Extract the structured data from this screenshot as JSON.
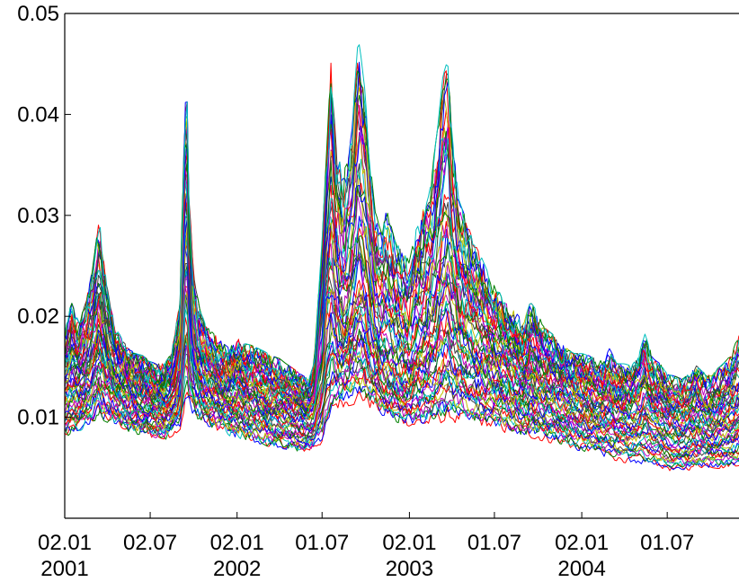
{
  "chart_data": {
    "type": "line",
    "title": "",
    "xlabel": "",
    "ylabel": "",
    "x_start": "2001-01-02",
    "x_end": "2004-11-30",
    "ylim": [
      0,
      0.05
    ],
    "yticks": [
      {
        "value": 0.01,
        "label": "0.01"
      },
      {
        "value": 0.02,
        "label": "0.02"
      },
      {
        "value": 0.03,
        "label": "0.03"
      },
      {
        "value": 0.04,
        "label": "0.04"
      },
      {
        "value": 0.05,
        "label": "0.05"
      }
    ],
    "xticks": [
      {
        "date": "2001-01-02",
        "label": "02.01",
        "year": "2001"
      },
      {
        "date": "2001-07-02",
        "label": "02.07",
        "year": ""
      },
      {
        "date": "2002-01-02",
        "label": "02.01",
        "year": "2002"
      },
      {
        "date": "2002-07-01",
        "label": "01.07",
        "year": ""
      },
      {
        "date": "2003-01-02",
        "label": "02.01",
        "year": "2003"
      },
      {
        "date": "2003-07-01",
        "label": "01.07",
        "year": ""
      },
      {
        "date": "2004-01-02",
        "label": "02.01",
        "year": "2004"
      },
      {
        "date": "2004-07-01",
        "label": "01.07",
        "year": ""
      }
    ],
    "grid": false,
    "legend": "none",
    "series_colors": [
      "#ff0000",
      "#0000ff",
      "#008000",
      "#00bfbf",
      "#bf00bf",
      "#bfbf00",
      "#404040"
    ],
    "envelope": {
      "dates": [
        "2001-01-02",
        "2001-01-16",
        "2001-02-01",
        "2001-02-16",
        "2001-03-01",
        "2001-03-16",
        "2001-04-02",
        "2001-04-16",
        "2001-05-02",
        "2001-05-16",
        "2001-06-01",
        "2001-06-16",
        "2001-07-02",
        "2001-07-16",
        "2001-08-01",
        "2001-08-16",
        "2001-09-03",
        "2001-09-11",
        "2001-09-17",
        "2001-09-21",
        "2001-10-01",
        "2001-10-16",
        "2001-11-01",
        "2001-11-16",
        "2001-12-03",
        "2001-12-17",
        "2002-01-02",
        "2002-01-16",
        "2002-02-01",
        "2002-02-15",
        "2002-03-01",
        "2002-03-15",
        "2002-04-02",
        "2002-04-16",
        "2002-05-02",
        "2002-05-16",
        "2002-06-03",
        "2002-06-14",
        "2002-07-01",
        "2002-07-10",
        "2002-07-20",
        "2002-08-01",
        "2002-08-15",
        "2002-09-02",
        "2002-09-16",
        "2002-10-01",
        "2002-10-10",
        "2002-10-21",
        "2002-11-01",
        "2002-11-15",
        "2002-12-02",
        "2002-12-16",
        "2003-01-02",
        "2003-01-16",
        "2003-02-03",
        "2003-02-17",
        "2003-03-03",
        "2003-03-14",
        "2003-03-24",
        "2003-04-01",
        "2003-04-16",
        "2003-05-02",
        "2003-05-16",
        "2003-06-02",
        "2003-06-16",
        "2003-07-01",
        "2003-07-16",
        "2003-08-01",
        "2003-08-15",
        "2003-09-01",
        "2003-09-15",
        "2003-10-01",
        "2003-10-15",
        "2003-11-03",
        "2003-11-17",
        "2003-12-01",
        "2003-12-15",
        "2004-01-02",
        "2004-01-16",
        "2004-02-02",
        "2004-02-16",
        "2004-03-01",
        "2004-03-16",
        "2004-04-01",
        "2004-04-16",
        "2004-05-03",
        "2004-05-14",
        "2004-06-01",
        "2004-06-16",
        "2004-07-01",
        "2004-07-16",
        "2004-08-02",
        "2004-08-16",
        "2004-09-01",
        "2004-09-15",
        "2004-10-01",
        "2004-10-15",
        "2004-11-01",
        "2004-11-15",
        "2004-11-30"
      ],
      "low": [
        0.0082,
        0.0085,
        0.009,
        0.0096,
        0.01,
        0.0104,
        0.01,
        0.0096,
        0.0094,
        0.009,
        0.0088,
        0.0086,
        0.0084,
        0.0082,
        0.008,
        0.0085,
        0.0092,
        0.011,
        0.0125,
        0.0118,
        0.0108,
        0.01,
        0.0094,
        0.009,
        0.0088,
        0.0086,
        0.0084,
        0.0082,
        0.008,
        0.0078,
        0.0076,
        0.0074,
        0.0073,
        0.0072,
        0.007,
        0.0068,
        0.0068,
        0.0072,
        0.0078,
        0.009,
        0.0105,
        0.0112,
        0.0116,
        0.0118,
        0.012,
        0.0118,
        0.0114,
        0.0112,
        0.0108,
        0.0104,
        0.01,
        0.0098,
        0.0096,
        0.0095,
        0.0094,
        0.0095,
        0.0097,
        0.0098,
        0.01,
        0.0099,
        0.0098,
        0.0096,
        0.0095,
        0.0094,
        0.0093,
        0.0092,
        0.009,
        0.0088,
        0.0086,
        0.0085,
        0.0084,
        0.0082,
        0.008,
        0.0078,
        0.0076,
        0.0074,
        0.0072,
        0.007,
        0.0068,
        0.0066,
        0.0064,
        0.0062,
        0.006,
        0.0058,
        0.0057,
        0.0056,
        0.0055,
        0.0054,
        0.0053,
        0.005,
        0.0048,
        0.0048,
        0.005,
        0.0052,
        0.0053,
        0.0053,
        0.0052,
        0.0052,
        0.0053,
        0.0055
      ],
      "median": [
        0.0135,
        0.0145,
        0.014,
        0.015,
        0.0165,
        0.019,
        0.016,
        0.0145,
        0.0138,
        0.013,
        0.0128,
        0.0125,
        0.0122,
        0.012,
        0.0118,
        0.0125,
        0.015,
        0.024,
        0.03,
        0.023,
        0.017,
        0.015,
        0.014,
        0.0135,
        0.013,
        0.0128,
        0.0132,
        0.013,
        0.0126,
        0.0125,
        0.0122,
        0.012,
        0.0118,
        0.0116,
        0.0115,
        0.0112,
        0.011,
        0.0115,
        0.017,
        0.023,
        0.025,
        0.021,
        0.019,
        0.0215,
        0.024,
        0.023,
        0.0205,
        0.018,
        0.017,
        0.0165,
        0.016,
        0.0155,
        0.015,
        0.0165,
        0.018,
        0.019,
        0.021,
        0.0225,
        0.0235,
        0.022,
        0.02,
        0.0185,
        0.0175,
        0.017,
        0.0165,
        0.016,
        0.0155,
        0.015,
        0.0145,
        0.014,
        0.0145,
        0.014,
        0.0135,
        0.0132,
        0.013,
        0.0128,
        0.0125,
        0.012,
        0.0118,
        0.0116,
        0.0114,
        0.0115,
        0.0112,
        0.011,
        0.0108,
        0.0112,
        0.0125,
        0.011,
        0.0108,
        0.01,
        0.0098,
        0.0096,
        0.0098,
        0.01,
        0.0098,
        0.0095,
        0.0096,
        0.01,
        0.0102,
        0.011
      ],
      "high": [
        0.018,
        0.021,
        0.019,
        0.021,
        0.024,
        0.029,
        0.023,
        0.019,
        0.0175,
        0.0165,
        0.016,
        0.0158,
        0.0152,
        0.015,
        0.015,
        0.016,
        0.021,
        0.037,
        0.044,
        0.033,
        0.024,
        0.02,
        0.0185,
        0.0178,
        0.017,
        0.0165,
        0.0175,
        0.017,
        0.0168,
        0.0165,
        0.0162,
        0.0158,
        0.0155,
        0.015,
        0.0145,
        0.014,
        0.0135,
        0.015,
        0.027,
        0.035,
        0.0445,
        0.036,
        0.033,
        0.038,
        0.047,
        0.041,
        0.035,
        0.03,
        0.028,
        0.03,
        0.027,
        0.026,
        0.025,
        0.028,
        0.031,
        0.033,
        0.038,
        0.043,
        0.0445,
        0.038,
        0.031,
        0.029,
        0.027,
        0.0255,
        0.024,
        0.023,
        0.0215,
        0.0205,
        0.02,
        0.019,
        0.021,
        0.02,
        0.0185,
        0.0178,
        0.0172,
        0.0165,
        0.016,
        0.016,
        0.0158,
        0.0155,
        0.0152,
        0.0165,
        0.015,
        0.015,
        0.0148,
        0.016,
        0.018,
        0.0155,
        0.015,
        0.014,
        0.0138,
        0.0135,
        0.014,
        0.0148,
        0.0142,
        0.0138,
        0.0145,
        0.0152,
        0.016,
        0.018
      ]
    }
  }
}
